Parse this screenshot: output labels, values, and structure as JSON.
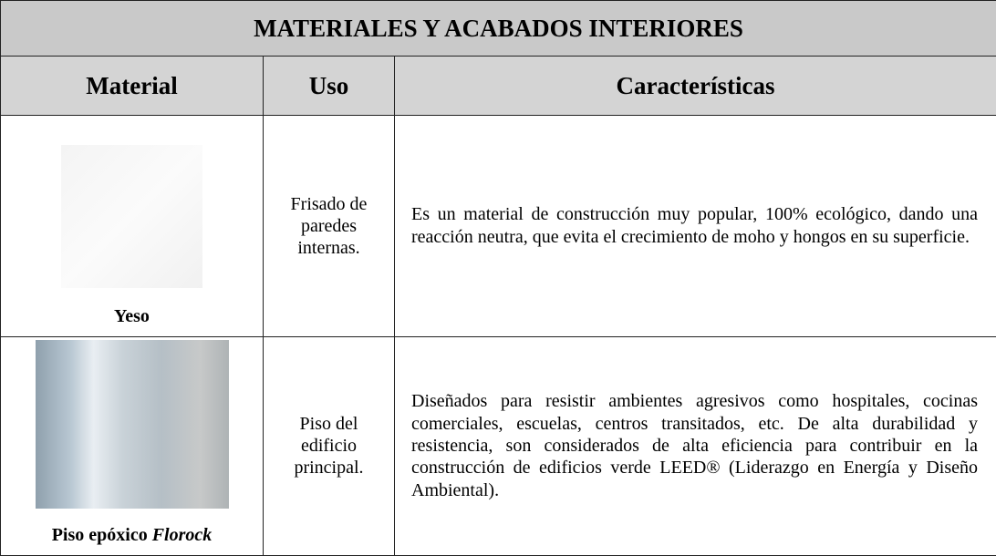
{
  "title": "MATERIALES Y ACABADOS INTERIORES",
  "header": [
    "Material",
    "Uso",
    "Características"
  ],
  "rows": [
    {
      "material": [
        "Yeso"
      ],
      "use": "Frisado de paredes internas.",
      "characteristics": "Es un material de construcción muy popular, 100% ecológico, dando una reacción neutra, que evita el crecimiento de moho y hongos en su superficie."
    },
    {
      "material": [
        "Piso epóxico",
        "Florock"
      ],
      "use": "Piso del edificio principal.",
      "characteristics": "Diseñados para resistir ambientes agresivos como hospitales, cocinas comerciales, escuelas, centros transitados, etc. De alta durabilidad y resistencia, son considerados de alta eficiencia para contribuir en la construcción de edificios verde LEED® (Liderazgo en Energía y Diseño Ambiental)."
    }
  ]
}
